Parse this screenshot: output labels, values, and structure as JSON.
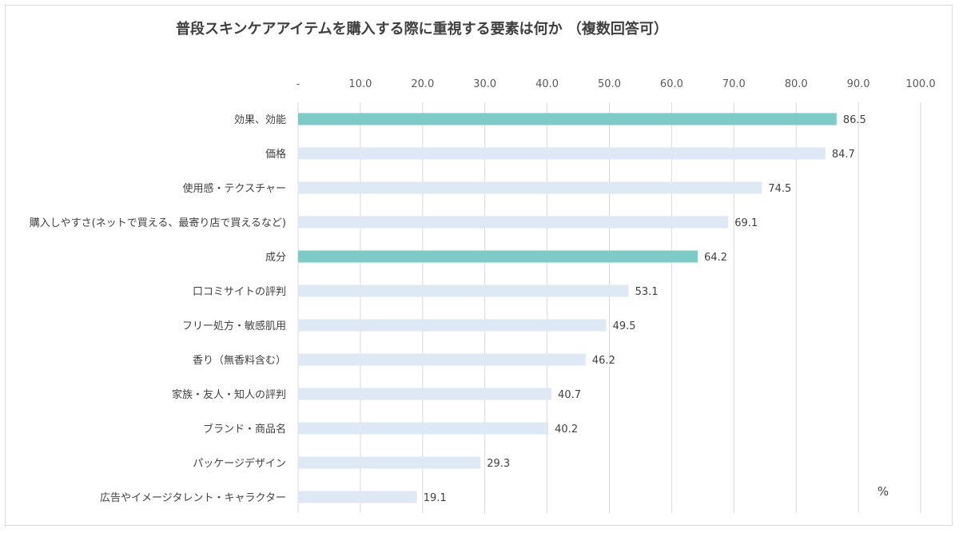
{
  "chart_data": {
    "type": "bar",
    "orientation": "horizontal",
    "title": "普段スキンケアアイテムを購入する際に重視する要素は何か （複数回答可）",
    "unit": "%",
    "xlim": [
      0,
      100
    ],
    "ticks": [
      "-",
      "10.0",
      "20.0",
      "30.0",
      "40.0",
      "50.0",
      "60.0",
      "70.0",
      "80.0",
      "90.0",
      "100.0"
    ],
    "tick_values": [
      0,
      10,
      20,
      30,
      40,
      50,
      60,
      70,
      80,
      90,
      100
    ],
    "grid": true,
    "categories": [
      "効果、効能",
      "価格",
      "使用感・テクスチャー",
      "購入しやすさ(ネットで買える、最寄り店で買えるなど)",
      "成分",
      "口コミサイトの評判",
      "フリー処方・敏感肌用",
      "香り（無香料含む）",
      "家族・友人・知人の評判",
      "ブランド・商品名",
      "パッケージデザイン",
      "広告やイメージタレント・キャラクター"
    ],
    "values": [
      86.5,
      84.7,
      74.5,
      69.1,
      64.2,
      53.1,
      49.5,
      46.2,
      40.7,
      40.2,
      29.3,
      19.1
    ],
    "value_labels": [
      "86.5",
      "84.7",
      "74.5",
      "69.1",
      "64.2",
      "53.1",
      "49.5",
      "46.2",
      "40.7",
      "40.2",
      "29.3",
      "19.1"
    ],
    "highlighted": [
      true,
      false,
      false,
      false,
      true,
      false,
      false,
      false,
      false,
      false,
      false,
      false
    ],
    "colors": {
      "highlight": "#7ecac6",
      "normal": "#dfe9f5",
      "grid": "#d9d9d9",
      "text": "#404040"
    }
  }
}
